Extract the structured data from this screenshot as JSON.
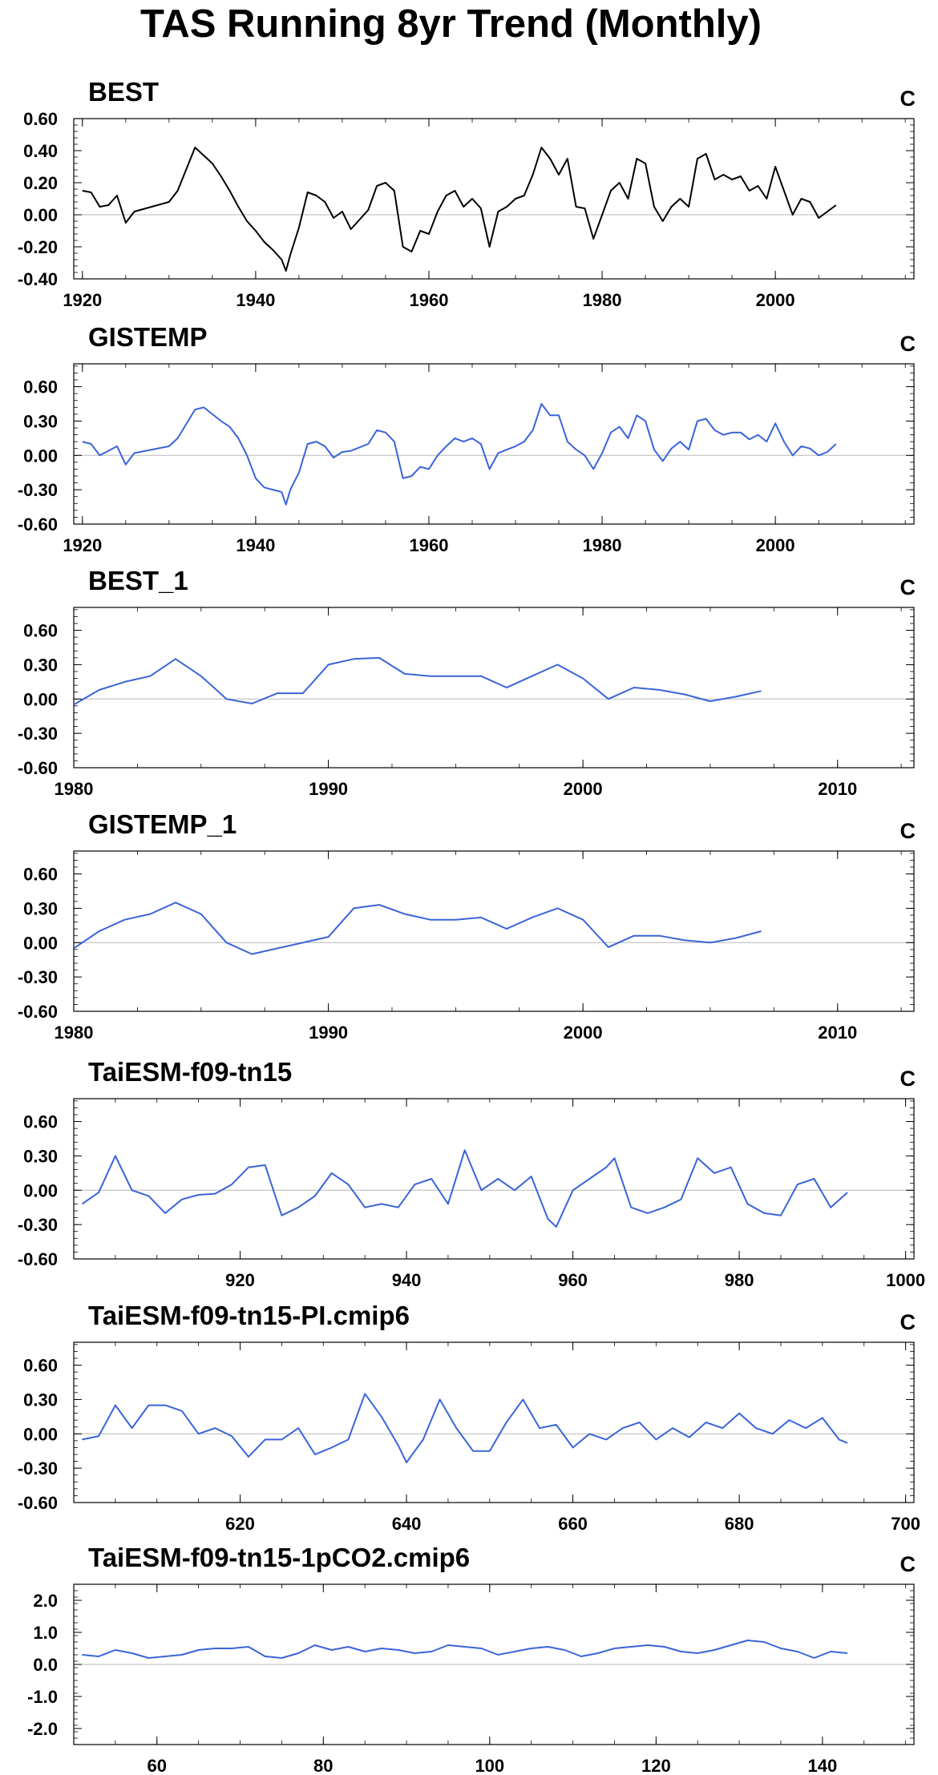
{
  "page": {
    "title": "TAS Running 8yr Trend (Monthly)"
  },
  "chart_data": [
    {
      "type": "line",
      "title": "BEST",
      "units": "C",
      "color": "#000000",
      "xlim": [
        1919,
        2016
      ],
      "ylim": [
        -0.4,
        0.6
      ],
      "xticks": [
        1920,
        1940,
        1960,
        1980,
        2000
      ],
      "yticks": [
        "-0.40",
        "-0.20",
        "0.00",
        "0.20",
        "0.40",
        "0.60"
      ],
      "series": [
        {
          "x": [
            1920,
            1921,
            1922,
            1923,
            1924,
            1925,
            1926,
            1928,
            1930,
            1931,
            1933,
            1935,
            1936,
            1937,
            1938,
            1939,
            1940,
            1941,
            1942,
            1943,
            1943.5,
            1944,
            1945,
            1946,
            1947,
            1948,
            1949,
            1950,
            1951,
            1953,
            1954,
            1955,
            1956,
            1957,
            1958,
            1959,
            1960,
            1961,
            1962,
            1963,
            1964,
            1965,
            1966,
            1967,
            1968,
            1969,
            1970,
            1971,
            1972,
            1973,
            1974,
            1975,
            1976,
            1977,
            1978,
            1979,
            1980,
            1981,
            1982,
            1983,
            1984,
            1985,
            1986,
            1987,
            1988,
            1989,
            1990,
            1991,
            1992,
            1993,
            1994,
            1995,
            1996,
            1997,
            1998,
            1999,
            2000,
            2001,
            2002,
            2003,
            2004,
            2005,
            2006,
            2007
          ],
          "y": [
            0.15,
            0.14,
            0.05,
            0.06,
            0.12,
            -0.05,
            0.02,
            0.05,
            0.08,
            0.15,
            0.42,
            0.32,
            0.24,
            0.15,
            0.05,
            -0.04,
            -0.1,
            -0.17,
            -0.22,
            -0.28,
            -0.35,
            -0.25,
            -0.08,
            0.14,
            0.12,
            0.08,
            -0.02,
            0.02,
            -0.09,
            0.03,
            0.18,
            0.2,
            0.15,
            -0.2,
            -0.23,
            -0.1,
            -0.12,
            0.02,
            0.12,
            0.15,
            0.05,
            0.1,
            0.04,
            -0.2,
            0.02,
            0.05,
            0.1,
            0.12,
            0.25,
            0.42,
            0.35,
            0.25,
            0.35,
            0.05,
            0.04,
            -0.15,
            0.0,
            0.15,
            0.2,
            0.1,
            0.35,
            0.32,
            0.05,
            -0.04,
            0.05,
            0.1,
            0.05,
            0.35,
            0.38,
            0.22,
            0.25,
            0.22,
            0.24,
            0.15,
            0.18,
            0.1,
            0.3,
            0.15,
            0.0,
            0.1,
            0.08,
            -0.02,
            0.02,
            0.06
          ]
        }
      ]
    },
    {
      "type": "line",
      "title": "GISTEMP",
      "units": "C",
      "color": "#3a64d8",
      "xlim": [
        1919,
        2016
      ],
      "ylim": [
        -0.6,
        0.8
      ],
      "xticks": [
        1920,
        1940,
        1960,
        1980,
        2000
      ],
      "yticks": [
        "-0.60",
        "-0.30",
        "0.00",
        "0.30",
        "0.60"
      ],
      "series": [
        {
          "x": [
            1920,
            1921,
            1922,
            1923,
            1924,
            1925,
            1926,
            1928,
            1930,
            1931,
            1933,
            1934,
            1936,
            1937,
            1938,
            1939,
            1940,
            1941,
            1942,
            1943,
            1943.5,
            1944,
            1945,
            1946,
            1947,
            1948,
            1949,
            1950,
            1951,
            1953,
            1954,
            1955,
            1956,
            1957,
            1958,
            1959,
            1960,
            1961,
            1962,
            1963,
            1964,
            1965,
            1966,
            1967,
            1968,
            1969,
            1970,
            1971,
            1972,
            1973,
            1974,
            1975,
            1976,
            1977,
            1978,
            1979,
            1980,
            1981,
            1982,
            1983,
            1984,
            1985,
            1986,
            1987,
            1988,
            1989,
            1990,
            1991,
            1992,
            1993,
            1994,
            1995,
            1996,
            1997,
            1998,
            1999,
            2000,
            2001,
            2002,
            2003,
            2004,
            2005,
            2006,
            2007
          ],
          "y": [
            0.12,
            0.1,
            0.0,
            0.04,
            0.08,
            -0.08,
            0.02,
            0.05,
            0.08,
            0.15,
            0.4,
            0.42,
            0.3,
            0.25,
            0.15,
            0.0,
            -0.2,
            -0.28,
            -0.3,
            -0.32,
            -0.43,
            -0.3,
            -0.15,
            0.1,
            0.12,
            0.08,
            -0.02,
            0.03,
            0.04,
            0.1,
            0.22,
            0.2,
            0.12,
            -0.2,
            -0.18,
            -0.1,
            -0.12,
            0.0,
            0.08,
            0.15,
            0.12,
            0.15,
            0.1,
            -0.12,
            0.02,
            0.05,
            0.08,
            0.12,
            0.22,
            0.45,
            0.35,
            0.35,
            0.12,
            0.05,
            0.0,
            -0.12,
            0.02,
            0.2,
            0.25,
            0.15,
            0.35,
            0.3,
            0.05,
            -0.05,
            0.06,
            0.12,
            0.05,
            0.3,
            0.32,
            0.22,
            0.18,
            0.2,
            0.2,
            0.14,
            0.18,
            0.12,
            0.28,
            0.12,
            0.0,
            0.08,
            0.06,
            0.0,
            0.03,
            0.1
          ]
        }
      ]
    },
    {
      "type": "line",
      "title": "BEST_1",
      "units": "C",
      "color": "#3a64d8",
      "xlim": [
        1980,
        2013
      ],
      "ylim": [
        -0.6,
        0.8
      ],
      "xticks": [
        1980,
        1990,
        2000,
        2010
      ],
      "yticks": [
        "-0.60",
        "-0.30",
        "0.00",
        "0.30",
        "0.60"
      ],
      "series": [
        {
          "x": [
            1980,
            1981,
            1982,
            1983,
            1984,
            1985,
            1986,
            1987,
            1988,
            1989,
            1990,
            1991,
            1992,
            1993,
            1994,
            1995,
            1996,
            1997,
            1998,
            1999,
            2000,
            2001,
            2002,
            2003,
            2004,
            2005,
            2006,
            2007
          ],
          "y": [
            -0.05,
            0.08,
            0.15,
            0.2,
            0.35,
            0.2,
            0.0,
            -0.04,
            0.05,
            0.05,
            0.3,
            0.35,
            0.36,
            0.22,
            0.2,
            0.2,
            0.2,
            0.1,
            0.2,
            0.3,
            0.18,
            0.0,
            0.1,
            0.08,
            0.04,
            -0.02,
            0.02,
            0.07
          ]
        }
      ]
    },
    {
      "type": "line",
      "title": "GISTEMP_1",
      "units": "C",
      "color": "#3a64d8",
      "xlim": [
        1980,
        2013
      ],
      "ylim": [
        -0.6,
        0.8
      ],
      "xticks": [
        1980,
        1990,
        2000,
        2010
      ],
      "yticks": [
        "-0.60",
        "-0.30",
        "0.00",
        "0.30",
        "0.60"
      ],
      "series": [
        {
          "x": [
            1980,
            1981,
            1982,
            1983,
            1984,
            1985,
            1986,
            1987,
            1988,
            1989,
            1990,
            1991,
            1992,
            1993,
            1994,
            1995,
            1996,
            1997,
            1998,
            1999,
            2000,
            2001,
            2002,
            2003,
            2004,
            2005,
            2006,
            2007
          ],
          "y": [
            -0.05,
            0.1,
            0.2,
            0.25,
            0.35,
            0.25,
            0.0,
            -0.1,
            -0.05,
            0.0,
            0.05,
            0.3,
            0.33,
            0.25,
            0.2,
            0.2,
            0.22,
            0.12,
            0.22,
            0.3,
            0.2,
            -0.04,
            0.06,
            0.06,
            0.02,
            0.0,
            0.04,
            0.1
          ]
        }
      ]
    },
    {
      "type": "line",
      "title": "TaiESM-f09-tn15",
      "units": "C",
      "color": "#3a64d8",
      "xlim": [
        900,
        1001
      ],
      "ylim": [
        -0.6,
        0.8
      ],
      "xticks": [
        920,
        940,
        960,
        980,
        1000
      ],
      "yticks": [
        "-0.60",
        "-0.30",
        "0.00",
        "0.30",
        "0.60"
      ],
      "series": [
        {
          "x": [
            901,
            903,
            905,
            907,
            909,
            911,
            913,
            915,
            917,
            919,
            921,
            923,
            925,
            927,
            929,
            931,
            933,
            935,
            937,
            939,
            941,
            943,
            945,
            947,
            949,
            951,
            953,
            955,
            957,
            958,
            960,
            962,
            964,
            965,
            967,
            969,
            971,
            973,
            975,
            977,
            979,
            981,
            983,
            985,
            987,
            989,
            991,
            993
          ],
          "y": [
            -0.12,
            -0.02,
            0.3,
            0.0,
            -0.05,
            -0.2,
            -0.08,
            -0.04,
            -0.03,
            0.05,
            0.2,
            0.22,
            -0.22,
            -0.15,
            -0.05,
            0.15,
            0.05,
            -0.15,
            -0.12,
            -0.15,
            0.05,
            0.1,
            -0.12,
            0.35,
            0.0,
            0.1,
            0.0,
            0.12,
            -0.25,
            -0.32,
            0.0,
            0.1,
            0.2,
            0.28,
            -0.15,
            -0.2,
            -0.15,
            -0.08,
            0.28,
            0.15,
            0.2,
            -0.12,
            -0.2,
            -0.22,
            0.05,
            0.1,
            -0.15,
            -0.02
          ]
        }
      ]
    },
    {
      "type": "line",
      "title": "TaiESM-f09-tn15-PI.cmip6",
      "units": "C",
      "color": "#3a64d8",
      "xlim": [
        600,
        701
      ],
      "ylim": [
        -0.6,
        0.8
      ],
      "xticks": [
        620,
        640,
        660,
        680,
        700
      ],
      "yticks": [
        "-0.60",
        "-0.30",
        "0.00",
        "0.30",
        "0.60"
      ],
      "series": [
        {
          "x": [
            601,
            603,
            605,
            607,
            609,
            611,
            613,
            615,
            617,
            619,
            621,
            623,
            625,
            627,
            629,
            631,
            633,
            635,
            637,
            639,
            640,
            642,
            644,
            646,
            648,
            650,
            652,
            654,
            656,
            658,
            660,
            662,
            664,
            666,
            668,
            670,
            672,
            674,
            676,
            678,
            680,
            682,
            684,
            686,
            688,
            690,
            692,
            693
          ],
          "y": [
            -0.05,
            -0.02,
            0.25,
            0.05,
            0.25,
            0.25,
            0.2,
            0.0,
            0.05,
            -0.02,
            -0.2,
            -0.05,
            -0.05,
            0.05,
            -0.18,
            -0.12,
            -0.05,
            0.35,
            0.15,
            -0.1,
            -0.25,
            -0.05,
            0.3,
            0.05,
            -0.15,
            -0.15,
            0.1,
            0.3,
            0.05,
            0.08,
            -0.12,
            0.0,
            -0.05,
            0.05,
            0.1,
            -0.05,
            0.05,
            -0.03,
            0.1,
            0.05,
            0.18,
            0.05,
            0.0,
            0.12,
            0.05,
            0.14,
            -0.05,
            -0.08
          ]
        }
      ]
    },
    {
      "type": "line",
      "title": "TaiESM-f09-tn15-1pCO2.cmip6",
      "units": "C",
      "color": "#3a64d8",
      "xlim": [
        50,
        151
      ],
      "ylim": [
        -2.5,
        2.5
      ],
      "xticks": [
        60,
        80,
        100,
        120,
        140
      ],
      "yticks": [
        "-2.0",
        "-1.0",
        "0.0",
        "1.0",
        "2.0"
      ],
      "series": [
        {
          "x": [
            51,
            53,
            55,
            57,
            59,
            61,
            63,
            65,
            67,
            69,
            71,
            73,
            75,
            77,
            79,
            81,
            83,
            85,
            87,
            89,
            91,
            93,
            95,
            97,
            99,
            101,
            103,
            105,
            107,
            109,
            111,
            113,
            115,
            117,
            119,
            121,
            123,
            125,
            127,
            129,
            131,
            133,
            135,
            137,
            139,
            141,
            143
          ],
          "y": [
            0.3,
            0.25,
            0.45,
            0.35,
            0.2,
            0.25,
            0.3,
            0.45,
            0.5,
            0.5,
            0.55,
            0.25,
            0.2,
            0.35,
            0.6,
            0.45,
            0.55,
            0.4,
            0.5,
            0.45,
            0.35,
            0.4,
            0.6,
            0.55,
            0.5,
            0.3,
            0.4,
            0.5,
            0.55,
            0.45,
            0.25,
            0.35,
            0.5,
            0.55,
            0.6,
            0.55,
            0.4,
            0.35,
            0.45,
            0.6,
            0.75,
            0.7,
            0.5,
            0.4,
            0.2,
            0.4,
            0.35
          ]
        }
      ]
    }
  ]
}
